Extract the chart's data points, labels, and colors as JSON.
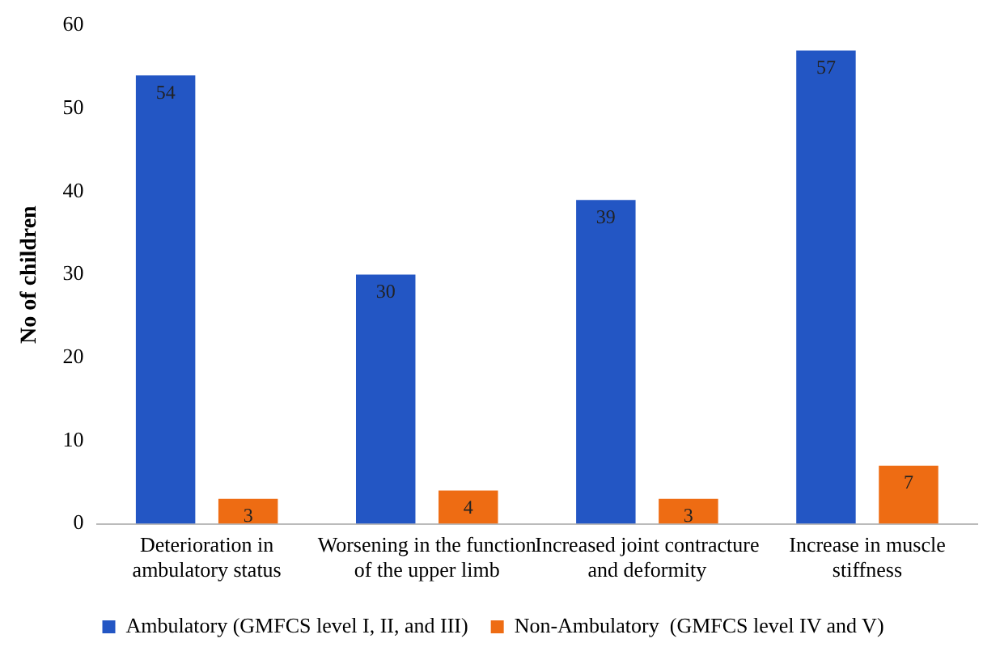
{
  "chart_data": {
    "type": "bar",
    "ylabel": "No of children",
    "categories": [
      "Deterioration in ambulatory status",
      "Worsening in the function of the upper limb",
      "Increased joint contracture and deformity",
      "Increase in muscle stiffness"
    ],
    "series": [
      {
        "name": "Ambulatory (GMFCS level I, II, and III)",
        "color": "#2356c4",
        "values": [
          54,
          30,
          39,
          57
        ]
      },
      {
        "name": "Non-Ambulatory  (GMFCS level IV and V)",
        "color": "#ee6c13",
        "values": [
          3,
          4,
          3,
          7
        ]
      }
    ],
    "ylim": [
      0,
      60
    ],
    "yticks": [
      0,
      10,
      20,
      30,
      40,
      50,
      60
    ],
    "grid": false,
    "legend": "bottom",
    "data_labels": true
  }
}
